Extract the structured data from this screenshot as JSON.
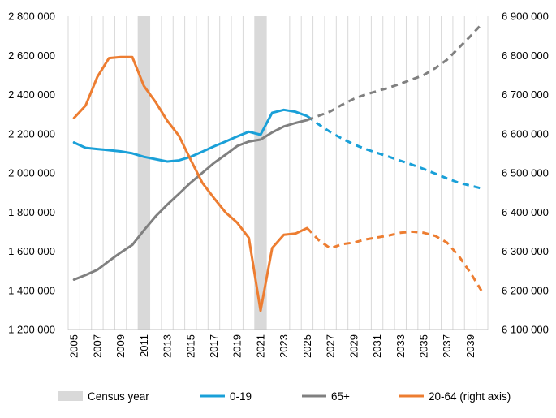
{
  "chart_data": {
    "type": "line",
    "title": "",
    "xlabel": "",
    "ylabel": "",
    "x": [
      2005,
      2006,
      2007,
      2008,
      2009,
      2010,
      2011,
      2012,
      2013,
      2014,
      2015,
      2016,
      2017,
      2018,
      2019,
      2020,
      2021,
      2022,
      2023,
      2024,
      2025,
      2026,
      2027,
      2028,
      2029,
      2030,
      2031,
      2032,
      2033,
      2034,
      2035,
      2036,
      2037,
      2038,
      2039,
      2040
    ],
    "x_tick_labels": [
      "2005",
      "2007",
      "2009",
      "2011",
      "2013",
      "2015",
      "2017",
      "2019",
      "2021",
      "2023",
      "2025",
      "2027",
      "2029",
      "2031",
      "2033",
      "2035",
      "2037",
      "2039"
    ],
    "y_left_ticks": [
      "1 200 000",
      "1 400 000",
      "1 600 000",
      "1 800 000",
      "2 000 000",
      "2 200 000",
      "2 400 000",
      "2 600 000",
      "2 800 000"
    ],
    "y_right_ticks": [
      "6 100 000",
      "6 200 000",
      "6 300 000",
      "6 400 000",
      "6 500 000",
      "6 600 000",
      "6 700 000",
      "6 800 000",
      "6 900 000"
    ],
    "ylim_left": [
      1200000,
      2800000
    ],
    "ylim_right": [
      6100000,
      6900000
    ],
    "grid": "vertical",
    "legend_position": "bottom",
    "projection_from": 2025,
    "census_years": [
      2011,
      2021
    ],
    "series": [
      {
        "name": "0-19",
        "axis": "left",
        "color": "#1aa0d8",
        "values": [
          2155000,
          2128000,
          2122000,
          2116000,
          2110000,
          2100000,
          2082000,
          2070000,
          2058000,
          2064000,
          2082000,
          2108000,
          2135000,
          2160000,
          2186000,
          2210000,
          2195000,
          2307000,
          2322000,
          2312000,
          2290000,
          2247000,
          2208000,
          2175000,
          2146000,
          2122000,
          2102000,
          2083000,
          2062000,
          2042000,
          2020000,
          1996000,
          1972000,
          1950000,
          1935000,
          1920000
        ]
      },
      {
        "name": "65+",
        "axis": "left",
        "color": "#808080",
        "values": [
          1455000,
          1478000,
          1505000,
          1550000,
          1593000,
          1632000,
          1707000,
          1778000,
          1838000,
          1893000,
          1950000,
          2000000,
          2050000,
          2093000,
          2137000,
          2160000,
          2170000,
          2207000,
          2237000,
          2255000,
          2270000,
          2292000,
          2314000,
          2348000,
          2378000,
          2400000,
          2418000,
          2435000,
          2455000,
          2477000,
          2500000,
          2535000,
          2578000,
          2638000,
          2698000,
          2762000
        ]
      },
      {
        "name": "20-64 (right axis)",
        "axis": "right",
        "color": "#ed7d31",
        "values": [
          6640000,
          6672000,
          6745000,
          6793000,
          6796000,
          6796000,
          6722000,
          6681000,
          6633000,
          6595000,
          6534000,
          6475000,
          6436000,
          6399000,
          6373000,
          6334000,
          6148000,
          6308000,
          6342000,
          6345000,
          6359000,
          6328000,
          6307000,
          6318000,
          6322000,
          6330000,
          6335000,
          6340000,
          6347000,
          6350000,
          6347000,
          6339000,
          6322000,
          6288000,
          6245000,
          6197000
        ]
      }
    ],
    "legend": [
      {
        "label": "Census year",
        "kind": "band",
        "color": "#d9d9d9"
      },
      {
        "label": "0-19",
        "kind": "line",
        "color": "#1aa0d8"
      },
      {
        "label": "65+",
        "kind": "line",
        "color": "#808080"
      },
      {
        "label": "20-64 (right axis)",
        "kind": "line",
        "color": "#ed7d31"
      }
    ]
  }
}
